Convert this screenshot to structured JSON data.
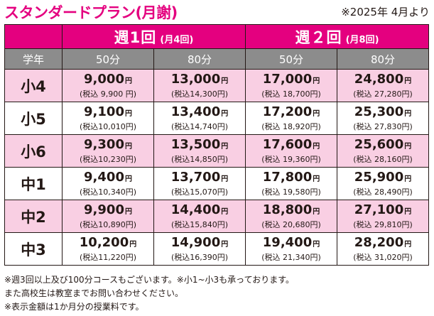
{
  "title": "スタンダードプラン(月謝)",
  "date_note": "※2025年 4月より",
  "header": {
    "week1_main": "週1回",
    "week1_sub": "(月4回)",
    "week2_main": "週２回",
    "week2_sub": "(月8回)",
    "grade_label": "学年",
    "durations": [
      "50分",
      "80分",
      "50分",
      "80分"
    ]
  },
  "yen_mark": "円",
  "rows": [
    {
      "grade": "小4",
      "cells": [
        {
          "price": "9,000",
          "tax": "(税込 9,900 円)"
        },
        {
          "price": "13,000",
          "tax": "(税込14,300円)"
        },
        {
          "price": "17,000",
          "tax": "(税込 18,700円)"
        },
        {
          "price": "24,800",
          "tax": "(税込 27,280円)"
        }
      ]
    },
    {
      "grade": "小5",
      "cells": [
        {
          "price": "9,100",
          "tax": "(税込10,010円)"
        },
        {
          "price": "13,400",
          "tax": "(税込14,740円)"
        },
        {
          "price": "17,200",
          "tax": "(税込 18,920円)"
        },
        {
          "price": "25,300",
          "tax": "(税込 27,830円)"
        }
      ]
    },
    {
      "grade": "小6",
      "cells": [
        {
          "price": "9,300",
          "tax": "(税込10,230円)"
        },
        {
          "price": "13,500",
          "tax": "(税込14,850円)"
        },
        {
          "price": "17,600",
          "tax": "(税込 19,360円)"
        },
        {
          "price": "25,600",
          "tax": "(税込 28,160円)"
        }
      ]
    },
    {
      "grade": "中1",
      "cells": [
        {
          "price": "9,400",
          "tax": "(税込10,340円)"
        },
        {
          "price": "13,700",
          "tax": "(税込15,070円)"
        },
        {
          "price": "17,800",
          "tax": "(税込 19,580円)"
        },
        {
          "price": "25,900",
          "tax": "(税込 28,490円)"
        }
      ]
    },
    {
      "grade": "中2",
      "cells": [
        {
          "price": "9,900",
          "tax": "(税込10,890円)"
        },
        {
          "price": "14,400",
          "tax": "(税込15,840円)"
        },
        {
          "price": "18,800",
          "tax": "(税込 20,680円)"
        },
        {
          "price": "27,100",
          "tax": "(税込 29,810円)"
        }
      ]
    },
    {
      "grade": "中3",
      "cells": [
        {
          "price": "10,200",
          "tax": "(税込11,220円)"
        },
        {
          "price": "14,900",
          "tax": "(税込16,390円)"
        },
        {
          "price": "19,400",
          "tax": "(税込 21,340円)"
        },
        {
          "price": "28,200",
          "tax": "(税込 31,020円)"
        }
      ]
    }
  ],
  "notes": [
    "※週3回以上及び100分コースもございます。※小1~小3も承っております。",
    "また高校生は教室までお問い合わせください。",
    "※表示金額は1か月分の授業料です。"
  ],
  "colors": {
    "accent_pink": "#e4007f",
    "row_pink": "#f9cfe3",
    "header_gray": "#8c8c8c",
    "text_dark": "#231815"
  }
}
